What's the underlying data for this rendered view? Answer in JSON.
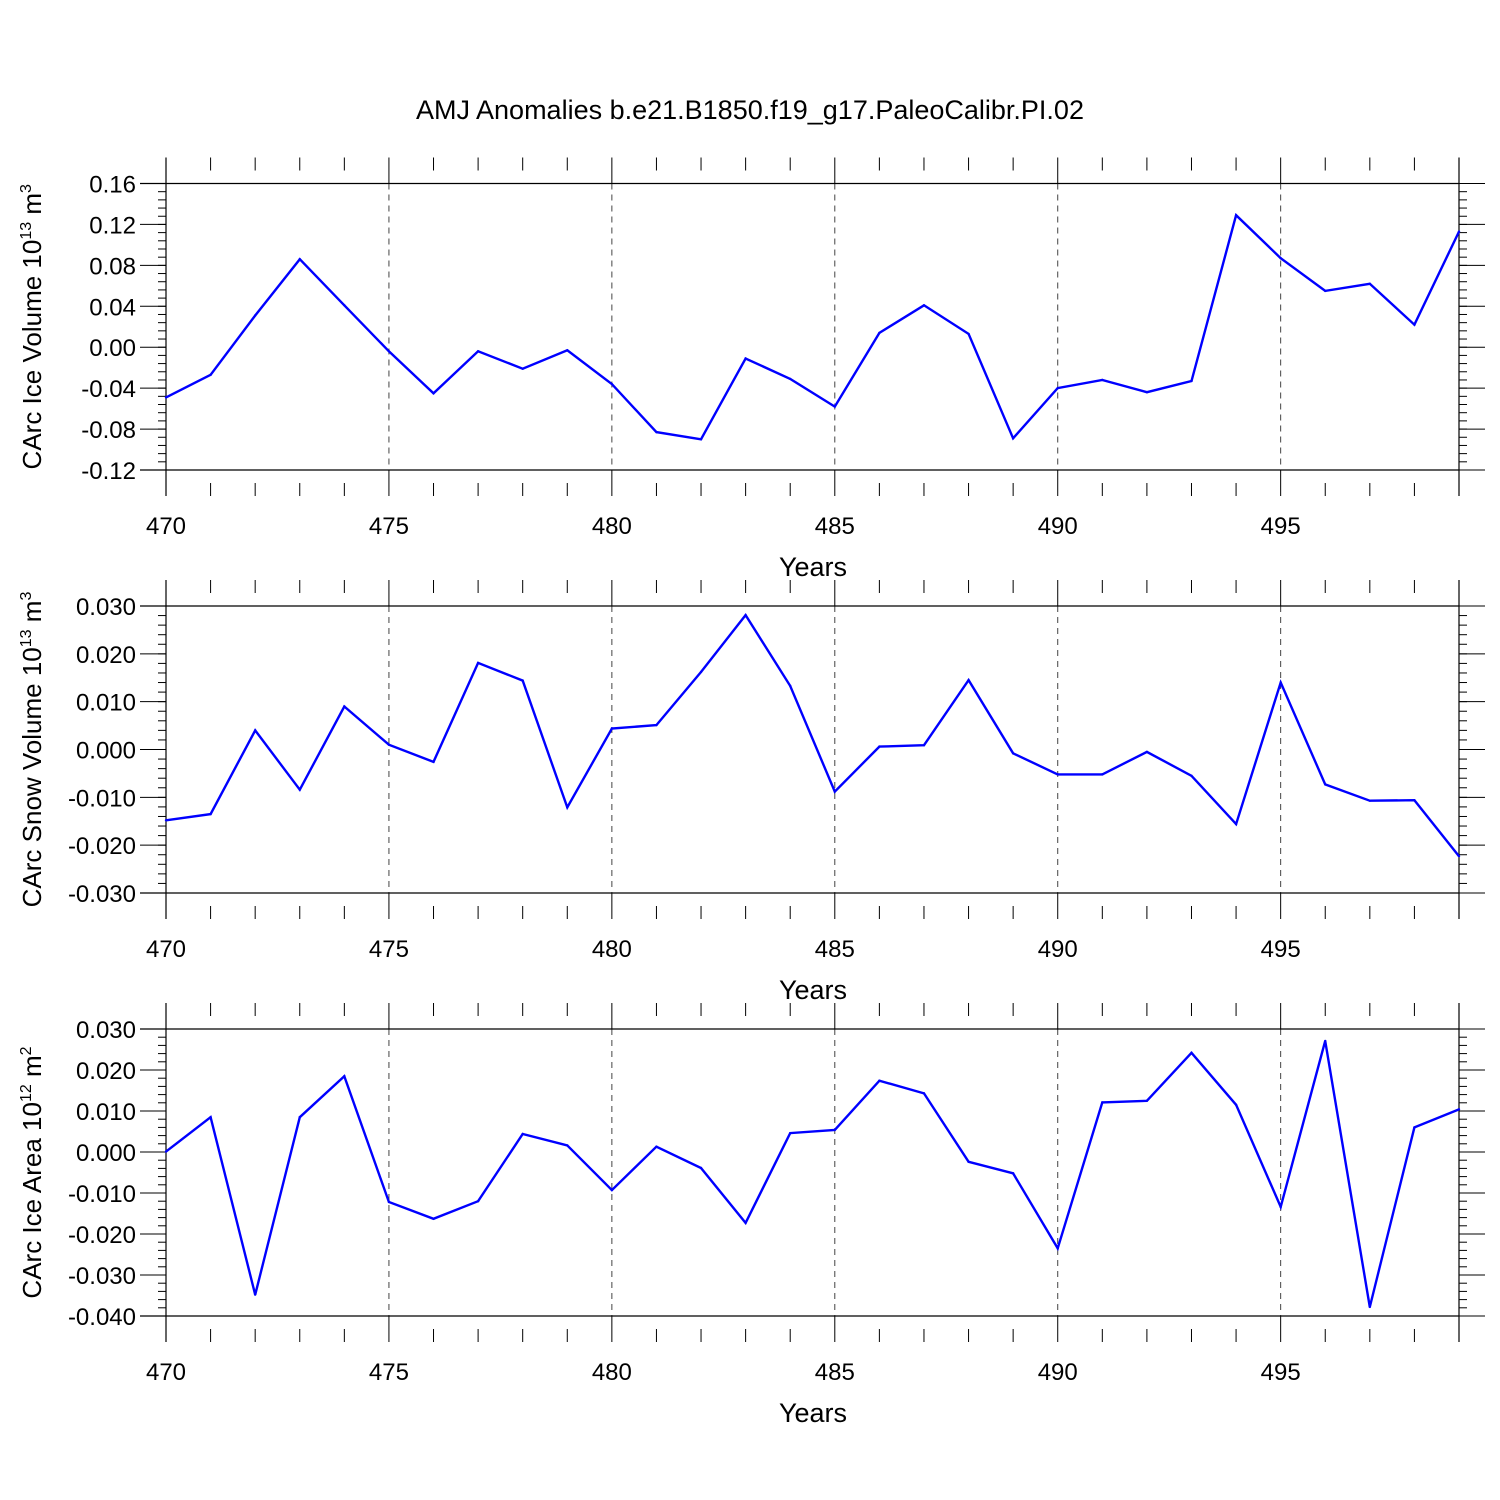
{
  "title": "AMJ Anomalies b.e21.B1850.f19_g17.PaleoCalibr.PI.02",
  "line_color": "#0000ff",
  "chart_data": [
    {
      "type": "line",
      "ylabel": {
        "text": "CArc Ice Volume 10",
        "exp": "13",
        "unit": " m",
        "unit_exp": "3"
      },
      "xlabel": "Years",
      "xlim": [
        470,
        499
      ],
      "ylim": [
        -0.12,
        0.16
      ],
      "xticks": [
        470,
        475,
        480,
        485,
        490,
        495
      ],
      "yticks": [
        "-0.12",
        "-0.08",
        "-0.04",
        "0.00",
        "0.04",
        "0.08",
        "0.12",
        "0.16"
      ],
      "grid": "vertical dashed at major x ticks",
      "x": [
        470,
        471,
        472,
        473,
        474,
        475,
        476,
        477,
        478,
        479,
        480,
        481,
        482,
        483,
        484,
        485,
        486,
        487,
        488,
        489,
        490,
        491,
        492,
        493,
        494,
        495,
        496,
        497,
        498,
        499
      ],
      "values": [
        -0.049,
        -0.027,
        0.031,
        0.086,
        0.041,
        -0.004,
        -0.045,
        -0.004,
        -0.021,
        -0.003,
        -0.036,
        -0.083,
        -0.09,
        -0.011,
        -0.031,
        -0.058,
        0.014,
        0.041,
        0.013,
        -0.089,
        -0.04,
        -0.032,
        -0.044,
        -0.033,
        0.129,
        0.087,
        0.055,
        0.062,
        0.022,
        0.113
      ]
    },
    {
      "type": "line",
      "ylabel": {
        "text": "CArc Snow Volume 10",
        "exp": "13",
        "unit": " m",
        "unit_exp": "3"
      },
      "xlabel": "Years",
      "xlim": [
        470,
        499
      ],
      "ylim": [
        -0.03,
        0.03
      ],
      "xticks": [
        470,
        475,
        480,
        485,
        490,
        495
      ],
      "yticks": [
        "-0.030",
        "-0.020",
        "-0.010",
        "0.000",
        "0.010",
        "0.020",
        "0.030"
      ],
      "grid": "vertical dashed at major x ticks",
      "x": [
        470,
        471,
        472,
        473,
        474,
        475,
        476,
        477,
        478,
        479,
        480,
        481,
        482,
        483,
        484,
        485,
        486,
        487,
        488,
        489,
        490,
        491,
        492,
        493,
        494,
        495,
        496,
        497,
        498,
        499
      ],
      "values": [
        -0.0148,
        -0.0135,
        0.004,
        -0.0084,
        0.009,
        0.001,
        -0.0026,
        0.0181,
        0.0144,
        -0.0121,
        0.0044,
        0.0051,
        0.0162,
        0.0281,
        0.0133,
        -0.0088,
        0.0006,
        0.0009,
        0.0145,
        -0.0008,
        -0.0052,
        -0.0052,
        -0.0005,
        -0.0055,
        -0.0156,
        0.014,
        -0.0073,
        -0.0107,
        -0.0106,
        -0.0223
      ]
    },
    {
      "type": "line",
      "ylabel": {
        "text": "CArc Ice Area 10",
        "exp": "12",
        "unit": " m",
        "unit_exp": "2"
      },
      "xlabel": "Years",
      "xlim": [
        470,
        499
      ],
      "ylim": [
        -0.04,
        0.03
      ],
      "xticks": [
        470,
        475,
        480,
        485,
        490,
        495
      ],
      "yticks": [
        "-0.040",
        "-0.030",
        "-0.020",
        "-0.010",
        "0.000",
        "0.010",
        "0.020",
        "0.030"
      ],
      "grid": "vertical dashed at major x ticks",
      "x": [
        470,
        471,
        472,
        473,
        474,
        475,
        476,
        477,
        478,
        479,
        480,
        481,
        482,
        483,
        484,
        485,
        486,
        487,
        488,
        489,
        490,
        491,
        492,
        493,
        494,
        495,
        496,
        497,
        498,
        499
      ],
      "values": [
        0.0001,
        0.0085,
        -0.0348,
        0.0085,
        0.0185,
        -0.0122,
        -0.0163,
        -0.012,
        0.0044,
        0.0016,
        -0.0093,
        0.0013,
        -0.0039,
        -0.0173,
        0.0046,
        0.0054,
        0.0174,
        0.0143,
        -0.0024,
        -0.0052,
        -0.0235,
        0.0121,
        0.0125,
        0.0242,
        0.0115,
        -0.0134,
        0.0271,
        -0.0378,
        0.006,
        0.0104
      ]
    }
  ]
}
